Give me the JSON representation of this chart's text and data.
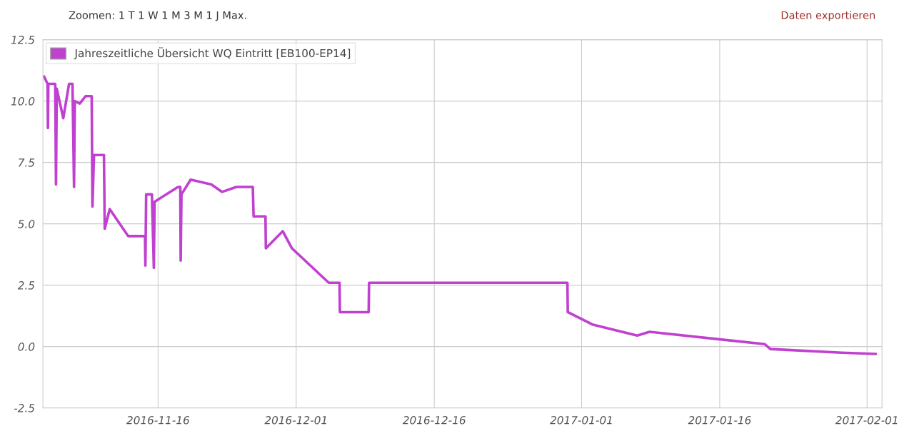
{
  "chart_data": {
    "type": "line",
    "annotations": [
      "Zoomen: 1 T 1 W 1 M 3 M 1 J Max.",
      "Daten exportieren"
    ],
    "x": [
      "2016-11-03T15:00",
      "2016-11-04T00:00",
      "2016-11-04T01:00",
      "2016-11-04T02:00",
      "2016-11-04T20:00",
      "2016-11-04T22:00",
      "2016-11-05T00:00",
      "2016-11-05T17:00",
      "2016-11-06T08:00",
      "2016-11-06T17:00",
      "2016-11-06T21:00",
      "2016-11-06T23:00",
      "2016-11-07T12:00",
      "2016-11-08T03:00",
      "2016-11-08T19:00",
      "2016-11-08T21:00",
      "2016-11-09T01:00",
      "2016-11-10T03:00",
      "2016-11-10T05:00",
      "2016-11-10T18:00",
      "2016-11-12T18:00",
      "2016-11-14T14:00",
      "2016-11-14T15:00",
      "2016-11-14T17:00",
      "2016-11-15T08:00",
      "2016-11-15T13:00",
      "2016-11-15T15:00",
      "2016-11-18T04:00",
      "2016-11-18T10:00",
      "2016-11-18T11:00",
      "2016-11-18T13:00",
      "2016-11-19T13:00",
      "2016-11-21T19:00",
      "2016-11-22T23:00",
      "2016-11-24T12:00",
      "2016-11-26T07:00",
      "2016-11-26T09:00",
      "2016-11-27T16:00",
      "2016-11-27T17:00",
      "2016-11-29T13:00",
      "2016-11-30T13:00",
      "2016-12-04T13:00",
      "2016-12-05T17:00",
      "2016-12-05T18:00",
      "2016-12-08T21:00",
      "2016-12-08T22:00",
      "2016-12-30T11:00",
      "2016-12-30T12:00",
      "2017-01-02T04:00",
      "2017-01-07T01:00",
      "2017-01-08T09:00",
      "2017-01-20T21:00",
      "2017-01-21T12:00",
      "2017-01-29T06:00",
      "2017-02-01T23:00"
    ],
    "series": [
      {
        "name": "Jahreszeitliche Übersicht WQ Eintritt [EB100-EP14]",
        "color": "#c040d0",
        "values": [
          11.0,
          10.7,
          8.9,
          10.7,
          10.7,
          6.6,
          10.5,
          9.3,
          10.7,
          10.7,
          6.5,
          10.0,
          9.9,
          10.2,
          10.2,
          5.7,
          7.8,
          7.8,
          4.8,
          5.6,
          4.5,
          4.5,
          3.3,
          6.2,
          6.2,
          3.2,
          5.9,
          6.5,
          6.5,
          3.5,
          6.2,
          6.8,
          6.6,
          6.3,
          6.5,
          6.5,
          5.3,
          5.3,
          4.0,
          4.7,
          4.0,
          2.6,
          2.6,
          1.4,
          1.4,
          2.6,
          2.6,
          1.4,
          0.9,
          0.45,
          0.6,
          0.1,
          -0.1,
          -0.25,
          -0.3
        ]
      }
    ],
    "xlim": [
      "2016-11-03T12:00",
      "2017-02-02T15:00"
    ],
    "xticks": [
      {
        "value": "2016-11-16",
        "label": "2016-11-16"
      },
      {
        "value": "2016-12-01",
        "label": "2016-12-01"
      },
      {
        "value": "2016-12-16",
        "label": "2016-12-16"
      },
      {
        "value": "2017-01-01",
        "label": "2017-01-01"
      },
      {
        "value": "2017-01-16",
        "label": "2017-01-16"
      },
      {
        "value": "2017-02-01",
        "label": "2017-02-01"
      }
    ],
    "ylim": [
      -2.5,
      12.5
    ],
    "yticks": [
      {
        "value": -2.5,
        "label": "-2.5"
      },
      {
        "value": 0,
        "label": "0.0"
      },
      {
        "value": 2.5,
        "label": "2.5"
      },
      {
        "value": 5,
        "label": "5.0"
      },
      {
        "value": 7.5,
        "label": "7.5"
      },
      {
        "value": 10,
        "label": "10.0"
      },
      {
        "value": 12.5,
        "label": "12.5"
      }
    ],
    "grid": true,
    "legend": "top left",
    "marker": "none",
    "line_style": "solid"
  }
}
